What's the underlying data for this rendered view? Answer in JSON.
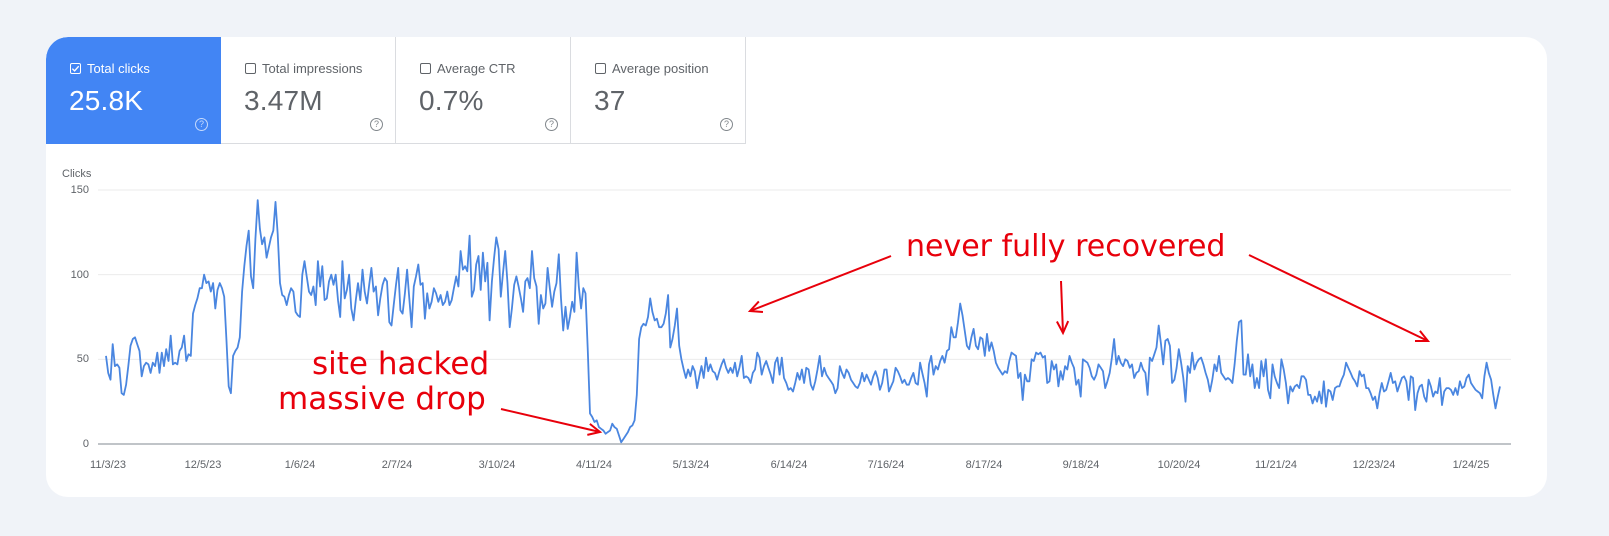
{
  "metrics": [
    {
      "label": "Total clicks",
      "value": "25.8K",
      "checked": true,
      "help_icon": "question-circle-icon"
    },
    {
      "label": "Total impressions",
      "value": "3.47M",
      "checked": false,
      "help_icon": "question-circle-icon"
    },
    {
      "label": "Average CTR",
      "value": "0.7%",
      "checked": false,
      "help_icon": "question-circle-icon"
    },
    {
      "label": "Average position",
      "value": "37",
      "checked": false,
      "help_icon": "question-circle-icon"
    }
  ],
  "colors": {
    "accent": "#4285f4",
    "line": "#4a86e0",
    "annotation": "#e8000b",
    "background": "#f0f3f8",
    "grid": "#ebebeb",
    "axis": "#9aa0a6"
  },
  "annotations": {
    "hack": {
      "line1": "site hacked",
      "line2": "massive drop"
    },
    "recovery": "never fully recovered"
  },
  "chart_data": {
    "type": "line",
    "title": "",
    "ylabel": "Clicks",
    "xlabel": "",
    "ylim": [
      0,
      150
    ],
    "yticks": [
      0,
      50,
      100,
      150
    ],
    "grid": true,
    "legend": "none",
    "xticks": [
      "11/3/23",
      "12/5/23",
      "1/6/24",
      "2/7/24",
      "3/10/24",
      "4/11/24",
      "5/13/24",
      "6/14/24",
      "7/16/24",
      "8/17/24",
      "9/18/24",
      "10/20/24",
      "11/21/24",
      "12/23/24",
      "1/24/25"
    ],
    "x_start": "11/3/23",
    "x_end": "2/1/25",
    "series": [
      {
        "name": "Clicks",
        "values": [
          52,
          42,
          38,
          59,
          46,
          47,
          45,
          30,
          29,
          35,
          46,
          58,
          62,
          63,
          59,
          55,
          40,
          46,
          48,
          47,
          42,
          48,
          46,
          54,
          42,
          54,
          46,
          56,
          49,
          64,
          47,
          48,
          47,
          55,
          57,
          64,
          49,
          53,
          52,
          77,
          82,
          86,
          92,
          92,
          100,
          95,
          96,
          90,
          95,
          80,
          91,
          95,
          92,
          87,
          62,
          34,
          30,
          52,
          55,
          57,
          63,
          90,
          105,
          117,
          126,
          99,
          92,
          121,
          144,
          127,
          118,
          122,
          110,
          116,
          122,
          126,
          143,
          124,
          95,
          88,
          87,
          82,
          88,
          92,
          90,
          78,
          76,
          75,
          100,
          108,
          99,
          90,
          88,
          93,
          82,
          108,
          93,
          105,
          85,
          86,
          96,
          100,
          94,
          100,
          85,
          75,
          108,
          86,
          91,
          100,
          80,
          73,
          85,
          95,
          85,
          103,
          90,
          83,
          94,
          104,
          90,
          93,
          76,
          86,
          94,
          98,
          96,
          72,
          70,
          82,
          94,
          104,
          79,
          77,
          89,
          103,
          86,
          69,
          93,
          99,
          106,
          94,
          95,
          74,
          89,
          80,
          84,
          92,
          89,
          84,
          88,
          82,
          84,
          90,
          82,
          85,
          92,
          99,
          93,
          114,
          103,
          105,
          102,
          123,
          87,
          91,
          106,
          111,
          91,
          113,
          96,
          107,
          73,
          96,
          110,
          122,
          115,
          87,
          101,
          114,
          95,
          69,
          80,
          94,
          99,
          93,
          86,
          78,
          96,
          98,
          92,
          114,
          98,
          93,
          71,
          88,
          80,
          83,
          104,
          92,
          81,
          90,
          95,
          112,
          86,
          67,
          81,
          68,
          75,
          84,
          78,
          113,
          93,
          80,
          92,
          89,
          55,
          18,
          16,
          13,
          14,
          10,
          9,
          8,
          6,
          7,
          8,
          12,
          10,
          9,
          5,
          1,
          3,
          5,
          7,
          10,
          11,
          14,
          29,
          62,
          69,
          71,
          70,
          75,
          86,
          78,
          73,
          74,
          69,
          69,
          71,
          77,
          88,
          57,
          62,
          70,
          80,
          58,
          50,
          44,
          39,
          44,
          40,
          46,
          43,
          33,
          40,
          46,
          39,
          51,
          43,
          47,
          43,
          42,
          38,
          43,
          47,
          50,
          45,
          42,
          45,
          42,
          48,
          40,
          45,
          52,
          39,
          40,
          39,
          36,
          42,
          44,
          54,
          51,
          41,
          46,
          49,
          45,
          41,
          36,
          48,
          51,
          41,
          51,
          39,
          36,
          32,
          33,
          31,
          36,
          42,
          38,
          44,
          36,
          45,
          44,
          35,
          32,
          37,
          44,
          52,
          40,
          45,
          41,
          39,
          37,
          35,
          30,
          33,
          46,
          42,
          39,
          44,
          42,
          38,
          36,
          34,
          33,
          36,
          42,
          37,
          41,
          38,
          35,
          40,
          43,
          39,
          32,
          36,
          44,
          44,
          31,
          34,
          37,
          45,
          43,
          40,
          36,
          38,
          35,
          35,
          39,
          42,
          36,
          35,
          48,
          42,
          36,
          28,
          47,
          52,
          41,
          46,
          44,
          49,
          52,
          48,
          55,
          56,
          69,
          63,
          63,
          72,
          83,
          76,
          67,
          58,
          56,
          63,
          68,
          58,
          56,
          63,
          62,
          52,
          65,
          55,
          60,
          55,
          48,
          45,
          43,
          41,
          43,
          42,
          49,
          54,
          53,
          52,
          39,
          42,
          26,
          41,
          37,
          37,
          50,
          49,
          54,
          53,
          54,
          51,
          52,
          36,
          37,
          49,
          44,
          47,
          34,
          43,
          38,
          46,
          44,
          52,
          48,
          45,
          35,
          38,
          28,
          50,
          49,
          48,
          45,
          40,
          38,
          41,
          47,
          45,
          43,
          33,
          37,
          42,
          51,
          62,
          47,
          52,
          48,
          46,
          50,
          49,
          45,
          47,
          39,
          42,
          43,
          48,
          44,
          42,
          29,
          51,
          49,
          53,
          57,
          70,
          59,
          47,
          61,
          62,
          58,
          36,
          38,
          45,
          56,
          48,
          39,
          25,
          46,
          42,
          54,
          44,
          48,
          50,
          51,
          47,
          42,
          38,
          31,
          38,
          47,
          43,
          52,
          42,
          40,
          38,
          39,
          38,
          36,
          47,
          61,
          72,
          73,
          41,
          41,
          53,
          40,
          47,
          33,
          39,
          33,
          49,
          40,
          50,
          32,
          27,
          47,
          40,
          36,
          33,
          50,
          44,
          36,
          24,
          34,
          31,
          34,
          35,
          33,
          40,
          40,
          38,
          29,
          29,
          24,
          28,
          25,
          31,
          24,
          37,
          22,
          32,
          31,
          26,
          33,
          34,
          34,
          38,
          41,
          48,
          45,
          42,
          39,
          37,
          34,
          43,
          40,
          41,
          33,
          33,
          30,
          26,
          28,
          21,
          30,
          36,
          31,
          32,
          37,
          42,
          36,
          37,
          31,
          35,
          39,
          40,
          37,
          26,
          40,
          39,
          20,
          30,
          34,
          35,
          28,
          25,
          38,
          34,
          28,
          31,
          30,
          39,
          23,
          31,
          33,
          33,
          32,
          29,
          33,
          29,
          37,
          33,
          34,
          39,
          41,
          36,
          34,
          32,
          31,
          30,
          27,
          40,
          48,
          42,
          38,
          29,
          21,
          28,
          34
        ]
      }
    ]
  }
}
